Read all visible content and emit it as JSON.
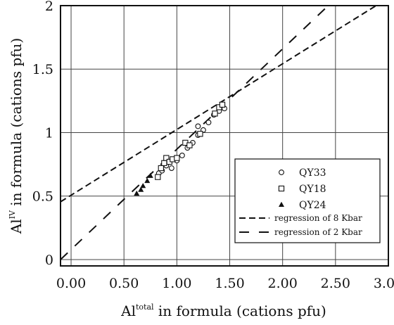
{
  "chart_data": {
    "type": "scatter",
    "xlabel": {
      "main": "Al",
      "sup": "total",
      "rest": " in formula (cations pfu)"
    },
    "ylabel": {
      "main": "Al",
      "sup": "IV",
      "rest": " in formula (cations pfu)"
    },
    "xlim": [
      -0.1,
      3.0
    ],
    "ylim": [
      -0.05,
      2.0
    ],
    "xticks": [
      0,
      0.5,
      1.0,
      1.5,
      2.0,
      2.5,
      3.0
    ],
    "xtick_labels": [
      "0.00",
      "0.50",
      "1.00",
      "1.50",
      "2.00",
      "2.50",
      "3.00"
    ],
    "yticks": [
      0,
      0.5,
      1,
      1.5,
      2
    ],
    "ytick_labels": [
      "0",
      "0.5",
      "1",
      "1.5",
      "2"
    ],
    "grid": true,
    "legend_position": "bottom-right",
    "series": [
      {
        "name": "QY33",
        "marker": "open-circle",
        "points": [
          [
            0.83,
            0.68
          ],
          [
            0.86,
            0.7
          ],
          [
            0.9,
            0.74
          ],
          [
            0.95,
            0.72
          ],
          [
            1.0,
            0.78
          ],
          [
            1.05,
            0.82
          ],
          [
            1.1,
            0.88
          ],
          [
            1.15,
            0.92
          ],
          [
            1.2,
            0.98
          ],
          [
            1.2,
            1.05
          ],
          [
            1.25,
            1.02
          ],
          [
            1.3,
            1.08
          ],
          [
            1.35,
            1.14
          ],
          [
            1.4,
            1.17
          ],
          [
            1.45,
            1.19
          ]
        ]
      },
      {
        "name": "QY18",
        "marker": "open-square",
        "points": [
          [
            0.82,
            0.65
          ],
          [
            0.85,
            0.72
          ],
          [
            0.88,
            0.76
          ],
          [
            0.9,
            0.8
          ],
          [
            0.93,
            0.77
          ],
          [
            0.96,
            0.79
          ],
          [
            1.0,
            0.8
          ],
          [
            1.08,
            0.92
          ],
          [
            1.12,
            0.9
          ],
          [
            1.22,
            0.99
          ],
          [
            1.36,
            1.15
          ],
          [
            1.4,
            1.2
          ],
          [
            1.43,
            1.22
          ]
        ]
      },
      {
        "name": "QY24",
        "marker": "filled-triangle",
        "points": [
          [
            0.62,
            0.52
          ],
          [
            0.66,
            0.55
          ],
          [
            0.68,
            0.58
          ],
          [
            0.72,
            0.62
          ],
          [
            0.75,
            0.66
          ]
        ]
      },
      {
        "name": "regression of 8 Kbar",
        "type": "line",
        "style": "dashed",
        "points": [
          [
            -0.1,
            0.455
          ],
          [
            3.0,
            2.06
          ]
        ]
      },
      {
        "name": "regression of 2 Kbar",
        "type": "line",
        "style": "long-dashed",
        "points": [
          [
            -0.1,
            0.0
          ],
          [
            2.52,
            2.07
          ]
        ]
      }
    ]
  }
}
